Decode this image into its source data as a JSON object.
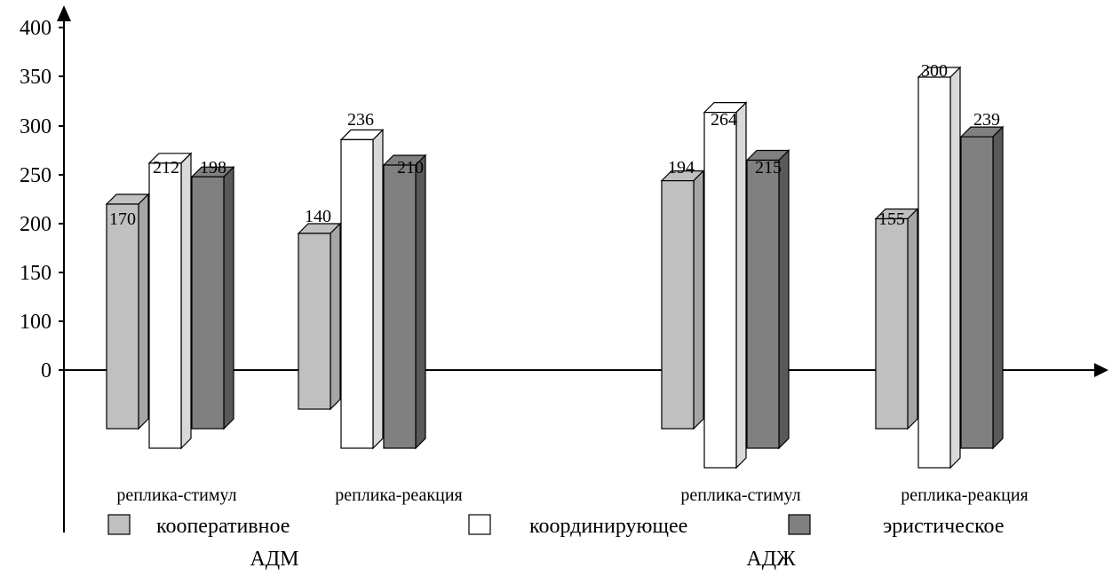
{
  "chart_data": {
    "type": "bar",
    "title": "",
    "xlabel": "",
    "ylabel": "",
    "ylim": [
      0,
      400
    ],
    "yticks": [
      "0",
      "100",
      "150",
      "200",
      "250",
      "300",
      "350",
      "400"
    ],
    "three_d": true,
    "grid": false,
    "legend_position": "bottom",
    "groups": [
      "АДМ",
      "АДЖ"
    ],
    "categories": [
      {
        "label": "реплика-стимул",
        "group": "АДМ"
      },
      {
        "label": "реплика-реакция",
        "group": "АДМ"
      },
      {
        "label": "реплика-стимул",
        "group": "АДЖ"
      },
      {
        "label": "реплика-реакция",
        "group": "АДЖ"
      }
    ],
    "series": [
      {
        "name": "кооперативное",
        "color": "#c0c0c0",
        "side_color": "#a6a6a6",
        "values": [
          170,
          140,
          194,
          155
        ]
      },
      {
        "name": "координирующее",
        "color": "#ffffff",
        "side_color": "#d9d9d9",
        "values": [
          212,
          236,
          264,
          300
        ]
      },
      {
        "name": "эристическое",
        "color": "#808080",
        "side_color": "#595959",
        "values": [
          198,
          210,
          215,
          239
        ]
      }
    ]
  }
}
